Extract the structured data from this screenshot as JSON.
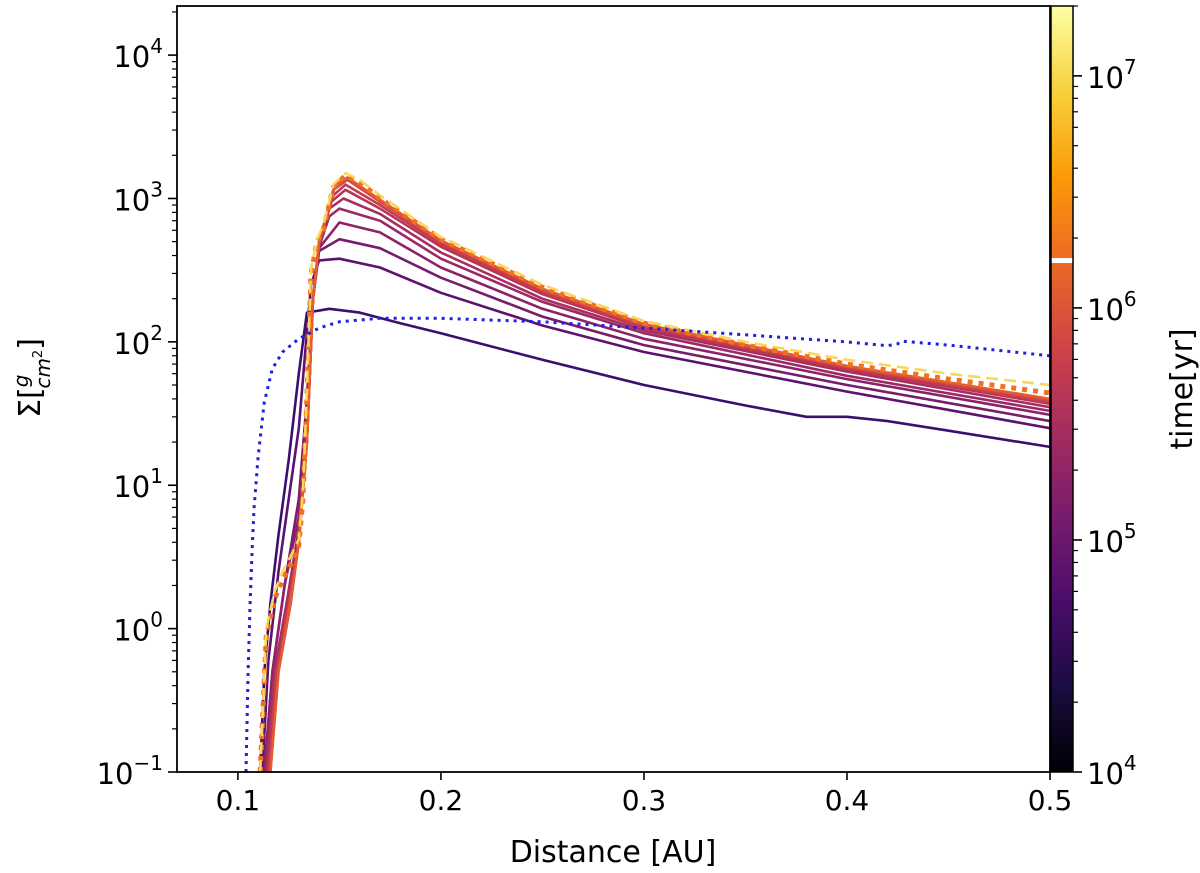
{
  "chart_data": {
    "type": "line",
    "title": "",
    "xlabel": "Distance [AU]",
    "ylabel": {
      "base": "Σ[",
      "numerator": "g",
      "denominator": "cm",
      "denominator_exp": "2",
      "close": "]"
    },
    "xscale": "linear",
    "yscale": "log",
    "xlim": [
      0.07,
      0.5
    ],
    "ylim": [
      0.1,
      22000
    ],
    "grid": false,
    "x_ticks": [
      {
        "value": 0.1,
        "label": "0.1"
      },
      {
        "value": 0.2,
        "label": "0.2"
      },
      {
        "value": 0.3,
        "label": "0.3"
      },
      {
        "value": 0.4,
        "label": "0.4"
      },
      {
        "value": 0.5,
        "label": "0.5"
      }
    ],
    "y_ticks": [
      {
        "value": 0.1,
        "base": "10",
        "exp": "−1"
      },
      {
        "value": 1,
        "base": "10",
        "exp": "0"
      },
      {
        "value": 10,
        "base": "10",
        "exp": "1"
      },
      {
        "value": 100,
        "base": "10",
        "exp": "2"
      },
      {
        "value": 1000,
        "base": "10",
        "exp": "3"
      },
      {
        "value": 10000,
        "base": "10",
        "exp": "4"
      }
    ],
    "colorbar": {
      "label": "time[yr]",
      "scale": "log",
      "colormap": "inferno",
      "range": [
        10000,
        20000000
      ],
      "marker_value": 1600000,
      "ticks": [
        {
          "value": 10000,
          "base": "10",
          "exp": "4"
        },
        {
          "value": 100000,
          "base": "10",
          "exp": "5"
        },
        {
          "value": 1000000,
          "base": "10",
          "exp": "6"
        },
        {
          "value": 10000000,
          "base": "10",
          "exp": "7"
        }
      ],
      "stops": [
        "#000004",
        "#1b0c41",
        "#4a0c6b",
        "#781c6d",
        "#a52c60",
        "#cf4446",
        "#ed6925",
        "#fb9b06",
        "#f7d13d",
        "#fcffa4"
      ]
    },
    "series": [
      {
        "time": 30000,
        "color": "#3b0f70",
        "width": 2.6,
        "style": "solid",
        "x": [
          0.111,
          0.113,
          0.116,
          0.12,
          0.125,
          0.13,
          0.134,
          0.145,
          0.16,
          0.18,
          0.2,
          0.25,
          0.3,
          0.35,
          0.38,
          0.4,
          0.42,
          0.45,
          0.5
        ],
        "y": [
          0.1,
          0.5,
          1.5,
          4.5,
          15,
          60,
          160,
          170,
          160,
          135,
          115,
          75,
          50,
          36,
          30,
          30,
          28,
          24,
          18.5
        ]
      },
      {
        "time": 60000,
        "color": "#5c126e",
        "width": 2.6,
        "style": "solid",
        "x": [
          0.112,
          0.115,
          0.12,
          0.125,
          0.13,
          0.133,
          0.136,
          0.14,
          0.15,
          0.17,
          0.2,
          0.25,
          0.3,
          0.4,
          0.5
        ],
        "y": [
          0.1,
          0.6,
          2.5,
          8,
          25,
          80,
          250,
          370,
          380,
          330,
          220,
          130,
          85,
          45,
          25
        ]
      },
      {
        "time": 100000,
        "color": "#781c6d",
        "width": 2.6,
        "style": "solid",
        "x": [
          0.113,
          0.117,
          0.123,
          0.13,
          0.134,
          0.137,
          0.14,
          0.15,
          0.17,
          0.2,
          0.25,
          0.3,
          0.4,
          0.5
        ],
        "y": [
          0.1,
          0.5,
          2,
          8,
          40,
          200,
          430,
          520,
          450,
          280,
          150,
          95,
          50,
          28
        ]
      },
      {
        "time": 150000,
        "color": "#8c2369",
        "width": 2.6,
        "style": "solid",
        "x": [
          0.113,
          0.117,
          0.123,
          0.13,
          0.134,
          0.137,
          0.14,
          0.15,
          0.17,
          0.2,
          0.25,
          0.3,
          0.4,
          0.5
        ],
        "y": [
          0.1,
          0.5,
          2,
          6,
          30,
          200,
          450,
          680,
          580,
          330,
          170,
          105,
          55,
          31
        ]
      },
      {
        "time": 220000,
        "color": "#9b2964",
        "width": 2.6,
        "style": "solid",
        "x": [
          0.114,
          0.118,
          0.124,
          0.13,
          0.134,
          0.137,
          0.14,
          0.145,
          0.15,
          0.17,
          0.2,
          0.25,
          0.3,
          0.4,
          0.5
        ],
        "y": [
          0.1,
          0.5,
          1.5,
          5,
          25,
          200,
          460,
          750,
          850,
          700,
          380,
          190,
          115,
          58,
          33
        ]
      },
      {
        "time": 320000,
        "color": "#a92e5e",
        "width": 2.6,
        "style": "solid",
        "x": [
          0.114,
          0.118,
          0.124,
          0.13,
          0.134,
          0.137,
          0.14,
          0.145,
          0.152,
          0.17,
          0.2,
          0.25,
          0.3,
          0.4,
          0.5
        ],
        "y": [
          0.1,
          0.5,
          1.5,
          4,
          20,
          200,
          470,
          850,
          1000,
          780,
          420,
          200,
          120,
          62,
          35
        ]
      },
      {
        "time": 450000,
        "color": "#b73557",
        "width": 2.6,
        "style": "solid",
        "x": [
          0.115,
          0.119,
          0.125,
          0.13,
          0.134,
          0.137,
          0.14,
          0.146,
          0.153,
          0.17,
          0.2,
          0.25,
          0.3,
          0.4,
          0.5
        ],
        "y": [
          0.1,
          0.5,
          1.5,
          4,
          20,
          200,
          480,
          950,
          1150,
          850,
          460,
          215,
          125,
          64,
          37
        ]
      },
      {
        "time": 650000,
        "color": "#c43c4e",
        "width": 2.6,
        "style": "solid",
        "x": [
          0.115,
          0.119,
          0.125,
          0.13,
          0.134,
          0.137,
          0.14,
          0.147,
          0.153,
          0.17,
          0.2,
          0.25,
          0.3,
          0.4,
          0.5
        ],
        "y": [
          0.1,
          0.5,
          1.5,
          4,
          20,
          200,
          490,
          1050,
          1250,
          900,
          480,
          222,
          128,
          66,
          38
        ]
      },
      {
        "time": 900000,
        "color": "#d44842",
        "width": 2.6,
        "style": "solid",
        "x": [
          0.116,
          0.12,
          0.126,
          0.13,
          0.134,
          0.137,
          0.14,
          0.147,
          0.154,
          0.17,
          0.2,
          0.25,
          0.3,
          0.4,
          0.5
        ],
        "y": [
          0.1,
          0.5,
          1.5,
          4,
          20,
          200,
          500,
          1150,
          1350,
          950,
          500,
          230,
          130,
          67,
          39
        ]
      },
      {
        "time": 1300000,
        "color": "#e45a31",
        "width": 2.6,
        "style": "solid",
        "x": [
          0.116,
          0.12,
          0.126,
          0.13,
          0.134,
          0.137,
          0.14,
          0.148,
          0.154,
          0.17,
          0.2,
          0.25,
          0.3,
          0.4,
          0.5
        ],
        "y": [
          0.1,
          0.5,
          1.6,
          4,
          20,
          200,
          500,
          1250,
          1400,
          980,
          510,
          235,
          133,
          68,
          40
        ]
      },
      {
        "time": 3000000,
        "color": "#f1711f",
        "width": 5,
        "style": "dotted",
        "x": [
          0.111,
          0.114,
          0.118,
          0.122,
          0.126,
          0.13,
          0.132,
          0.134,
          0.136,
          0.139,
          0.142,
          0.147,
          0.153,
          0.16,
          0.17,
          0.2,
          0.25,
          0.3,
          0.35,
          0.4,
          0.45,
          0.5
        ],
        "y": [
          0.1,
          0.9,
          1.6,
          2.2,
          2.8,
          3.8,
          8,
          40,
          300,
          500,
          600,
          1200,
          1450,
          1300,
          1000,
          520,
          240,
          135,
          95,
          70,
          55,
          44
        ]
      },
      {
        "time": 15000000,
        "color": "#f8d75a",
        "width": 2.6,
        "style": "dashed",
        "x": [
          0.111,
          0.114,
          0.118,
          0.122,
          0.126,
          0.13,
          0.132,
          0.134,
          0.136,
          0.139,
          0.142,
          0.147,
          0.153,
          0.16,
          0.17,
          0.2,
          0.25,
          0.3,
          0.35,
          0.4,
          0.45,
          0.5
        ],
        "y": [
          0.1,
          1.0,
          1.8,
          2.5,
          3.2,
          4.2,
          9,
          45,
          320,
          520,
          650,
          1250,
          1500,
          1350,
          1050,
          540,
          250,
          140,
          100,
          75,
          60,
          50
        ]
      },
      {
        "time": null,
        "color": "#1f1fe6",
        "width": 3,
        "style": "dotted",
        "x": [
          0.104,
          0.105,
          0.106,
          0.107,
          0.108,
          0.11,
          0.113,
          0.117,
          0.122,
          0.13,
          0.14,
          0.15,
          0.17,
          0.2,
          0.25,
          0.3,
          0.35,
          0.4,
          0.42,
          0.425,
          0.427,
          0.45,
          0.5
        ],
        "y": [
          0.1,
          0.5,
          1.5,
          3.5,
          7,
          16,
          38,
          65,
          85,
          105,
          125,
          138,
          146,
          146,
          138,
          125,
          112,
          100,
          94,
          97,
          101,
          95,
          80
        ]
      }
    ]
  }
}
